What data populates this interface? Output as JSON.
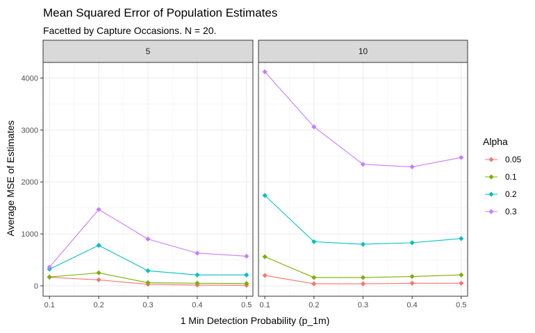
{
  "chart_data": {
    "type": "line",
    "title": "Mean Squared Error of Population Estimates",
    "subtitle": "Facetted by Capture Occasions. N = 20.",
    "xlabel": "1 Min Detection Probability (p_1m)",
    "ylabel": "Average MSE of Estimates",
    "x": [
      0.1,
      0.2,
      0.3,
      0.4,
      0.5
    ],
    "x_tick_labels": [
      "0.1",
      "0.2",
      "0.3",
      "0.4",
      "0.5"
    ],
    "xlim": [
      0.087,
      0.513
    ],
    "ylim": [
      -200,
      4300
    ],
    "y_ticks": [
      0,
      1000,
      2000,
      3000,
      4000
    ],
    "y_tick_labels": [
      "0",
      "1000",
      "2000",
      "3000",
      "4000"
    ],
    "grid": true,
    "legend": {
      "title": "Alpha",
      "position": "right",
      "entries": [
        "0.05",
        "0.1",
        "0.2",
        "0.3"
      ]
    },
    "series_colors": [
      "#F8766D",
      "#7CAE00",
      "#00BFC4",
      "#C77CFF"
    ],
    "facets": [
      {
        "label": "5",
        "series": [
          {
            "name": "0.05",
            "values": [
              165,
              115,
              30,
              15,
              10
            ]
          },
          {
            "name": "0.1",
            "values": [
              170,
              250,
              60,
              50,
              45
            ]
          },
          {
            "name": "0.2",
            "values": [
              320,
              780,
              290,
              210,
              210
            ]
          },
          {
            "name": "0.3",
            "values": [
              360,
              1470,
              900,
              630,
              570
            ]
          }
        ]
      },
      {
        "label": "10",
        "series": [
          {
            "name": "0.05",
            "values": [
              200,
              40,
              40,
              50,
              50
            ]
          },
          {
            "name": "0.1",
            "values": [
              560,
              160,
              160,
              180,
              210
            ]
          },
          {
            "name": "0.2",
            "values": [
              1740,
              850,
              800,
              830,
              910
            ]
          },
          {
            "name": "0.3",
            "values": [
              4120,
              3060,
              2340,
              2290,
              2470
            ]
          }
        ]
      }
    ]
  }
}
